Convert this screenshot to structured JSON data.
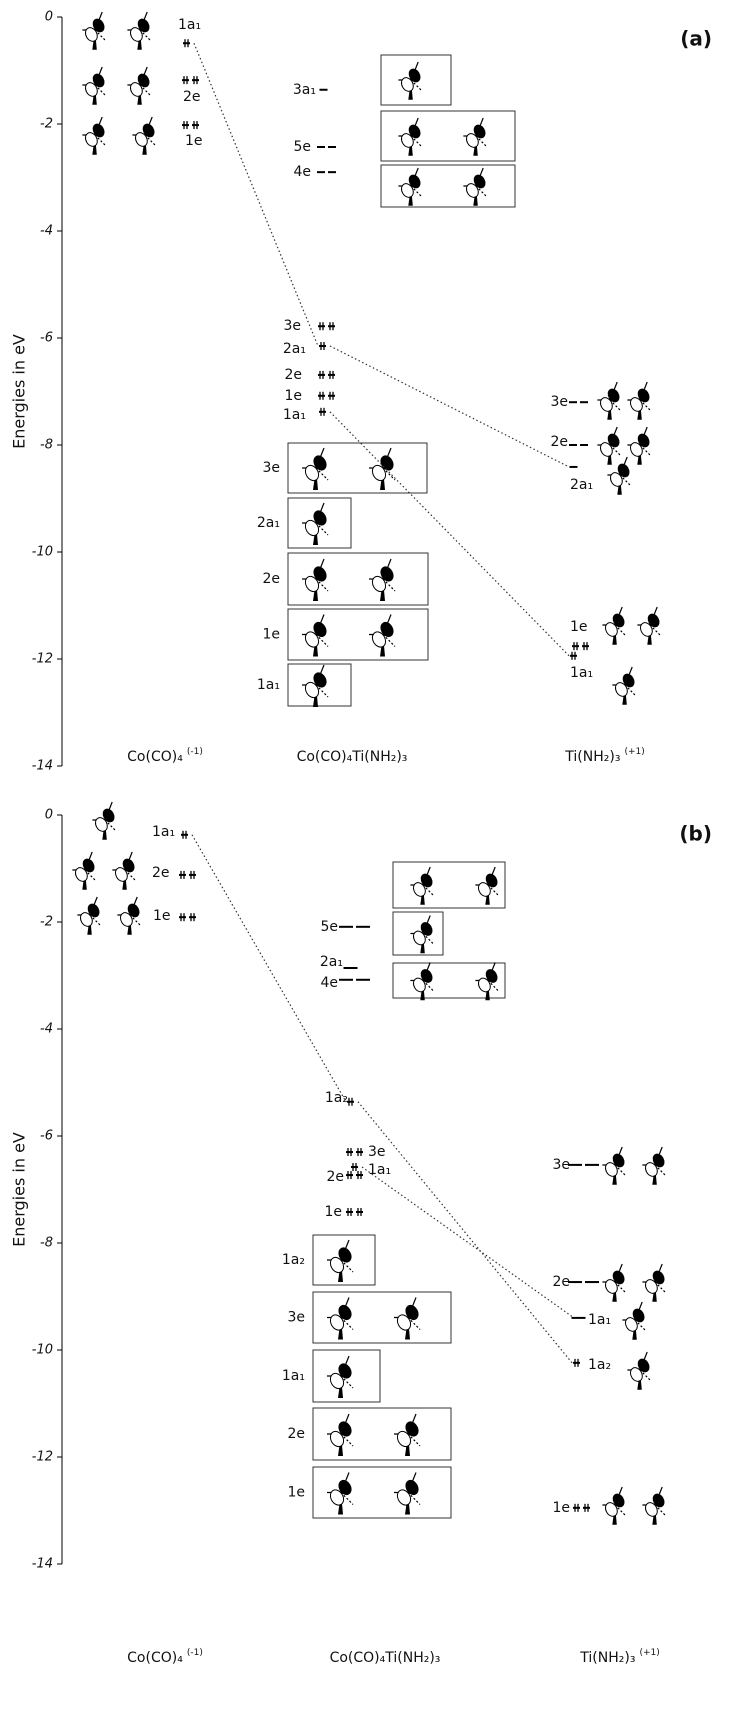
{
  "panels": [
    {
      "label": "(a)",
      "y_label": "Energies in eV",
      "ylim": [
        -14,
        0
      ],
      "yticks": [
        0,
        -2,
        -4,
        -6,
        -8,
        -10,
        -12,
        -14
      ],
      "columns": [
        {
          "name": "Co(CO)₄",
          "charge": "(-1)",
          "levels": [
            {
              "label": "1a₁",
              "energy": -0.49,
              "occupied": true
            },
            {
              "label": "2e",
              "energy": -1.18,
              "occupied": true
            },
            {
              "label": "1e",
              "energy": -2.02,
              "occupied": true
            }
          ]
        },
        {
          "name": "Co(CO)₄Ti(NH₂)₃",
          "levels": [
            {
              "label": "3a₁",
              "energy": -1.36,
              "occupied": false
            },
            {
              "label": "5e",
              "energy": -2.43,
              "occupied": false
            },
            {
              "label": "4e",
              "energy": -2.9,
              "occupied": false
            },
            {
              "label": "3e",
              "energy": -5.78,
              "occupied": true
            },
            {
              "label": "2a₁",
              "energy": -6.15,
              "occupied": true
            },
            {
              "label": "2e",
              "energy": -6.69,
              "occupied": true
            },
            {
              "label": "1e",
              "energy": -7.08,
              "occupied": true
            },
            {
              "label": "1a₁",
              "energy": -7.38,
              "occupied": true
            }
          ],
          "boxes": [
            "3e",
            "2a₁",
            "2e",
            "1e",
            "1a₁"
          ]
        },
        {
          "name": "Ti(NH₂)₃",
          "charge": "(+1)",
          "levels": [
            {
              "label": "3e",
              "energy": -7.2,
              "occupied": false
            },
            {
              "label": "2e",
              "energy": -8.0,
              "occupied": false
            },
            {
              "label": "2a₁",
              "energy": -8.41,
              "occupied": false
            },
            {
              "label": "1e",
              "energy": -11.76,
              "occupied": true
            },
            {
              "label": "1a₁",
              "energy": -11.94,
              "occupied": true
            }
          ]
        }
      ]
    },
    {
      "label": "(b)",
      "y_label": "Energies in eV",
      "ylim": [
        -14,
        0
      ],
      "yticks": [
        0,
        -2,
        -4,
        -6,
        -8,
        -10,
        -12,
        -14
      ],
      "columns": [
        {
          "name": "Co(CO)₄",
          "charge": "(-1)",
          "levels": [
            {
              "label": "1a₁",
              "energy": -0.37,
              "occupied": true
            },
            {
              "label": "2e",
              "energy": -1.12,
              "occupied": true
            },
            {
              "label": "1e",
              "energy": -1.91,
              "occupied": true
            }
          ]
        },
        {
          "name": "Co(CO)₄Ti(NH₂)₃",
          "levels": [
            {
              "label": "5e",
              "energy": -2.09,
              "occupied": false
            },
            {
              "label": "2a₁",
              "energy": -2.86,
              "occupied": false
            },
            {
              "label": "4e",
              "energy": -3.08,
              "occupied": false
            },
            {
              "label": "1a₂",
              "energy": -5.36,
              "occupied": true
            },
            {
              "label": "3e",
              "energy": -6.3,
              "occupied": true
            },
            {
              "label": "1a₁",
              "energy": -6.58,
              "occupied": true
            },
            {
              "label": "2e",
              "energy": -6.73,
              "occupied": true
            },
            {
              "label": "1e",
              "energy": -7.42,
              "occupied": true
            }
          ],
          "boxes": [
            "1a₂",
            "3e",
            "1a₁",
            "2e",
            "1e"
          ]
        },
        {
          "name": "Ti(NH₂)₃",
          "charge": "(+1)",
          "levels": [
            {
              "label": "3e",
              "energy": -6.54,
              "occupied": false
            },
            {
              "label": "2e",
              "energy": -8.73,
              "occupied": false
            },
            {
              "label": "1a₁",
              "energy": -9.4,
              "occupied": false
            },
            {
              "label": "1a₂",
              "energy": -10.24,
              "occupied": true
            },
            {
              "label": "1e",
              "energy": -12.95,
              "occupied": true
            }
          ]
        }
      ]
    }
  ]
}
